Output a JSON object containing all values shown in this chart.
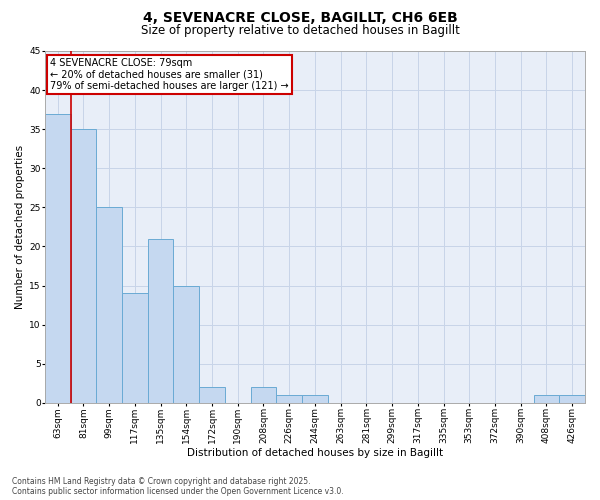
{
  "title": "4, SEVENACRE CLOSE, BAGILLT, CH6 6EB",
  "subtitle": "Size of property relative to detached houses in Bagillt",
  "xlabel": "Distribution of detached houses by size in Bagillt",
  "ylabel": "Number of detached properties",
  "categories": [
    "63sqm",
    "81sqm",
    "99sqm",
    "117sqm",
    "135sqm",
    "154sqm",
    "172sqm",
    "190sqm",
    "208sqm",
    "226sqm",
    "244sqm",
    "263sqm",
    "281sqm",
    "299sqm",
    "317sqm",
    "335sqm",
    "353sqm",
    "372sqm",
    "390sqm",
    "408sqm",
    "426sqm"
  ],
  "values": [
    37,
    35,
    25,
    14,
    21,
    15,
    2,
    0,
    2,
    1,
    1,
    0,
    0,
    0,
    0,
    0,
    0,
    0,
    0,
    1,
    1
  ],
  "bar_color": "#c5d8f0",
  "bar_edge_color": "#6aaad4",
  "vline_color": "#cc0000",
  "vline_x_index": 0.5,
  "annotation_text": "4 SEVENACRE CLOSE: 79sqm\n← 20% of detached houses are smaller (31)\n79% of semi-detached houses are larger (121) →",
  "annotation_box_edge_color": "#cc0000",
  "ylim": [
    0,
    45
  ],
  "yticks": [
    0,
    5,
    10,
    15,
    20,
    25,
    30,
    35,
    40,
    45
  ],
  "bg_color": "#e8eef8",
  "grid_color": "#c8d4e8",
  "footer_text": "Contains HM Land Registry data © Crown copyright and database right 2025.\nContains public sector information licensed under the Open Government Licence v3.0.",
  "title_fontsize": 10,
  "subtitle_fontsize": 8.5,
  "axis_label_fontsize": 7.5,
  "tick_fontsize": 6.5,
  "annotation_fontsize": 7,
  "footer_fontsize": 5.5
}
